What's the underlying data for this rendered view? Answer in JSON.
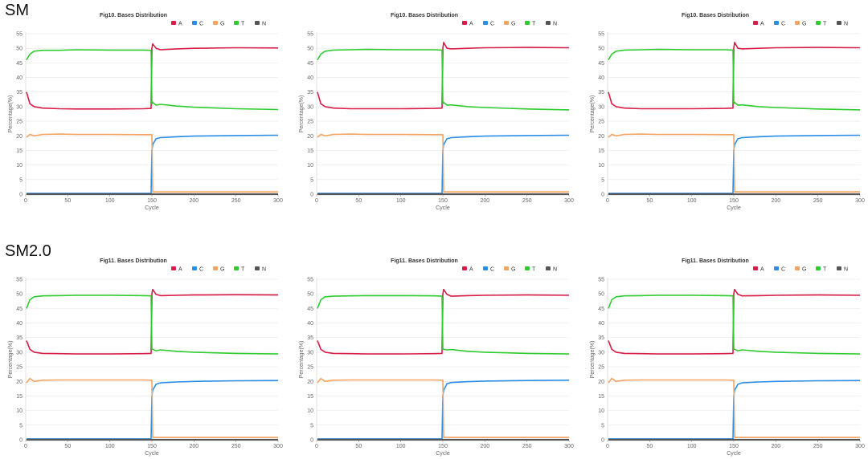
{
  "sections": [
    {
      "label": "SM"
    },
    {
      "label": "SM2.0"
    }
  ],
  "colors": {
    "A": "#d81b47",
    "C": "#2a8ee8",
    "G": "#f4a460",
    "T": "#2ecc2e",
    "N": "#555555"
  },
  "chart_data": [
    {
      "type": "line",
      "title": "Fig10. Bases Distribution",
      "xlabel": "Cycle",
      "ylabel": "Percentage(%)",
      "xlim": [
        0,
        300
      ],
      "ylim": [
        0,
        55
      ],
      "xticks": [
        0,
        50,
        100,
        150,
        200,
        250,
        300
      ],
      "yticks": [
        0,
        5,
        10,
        15,
        20,
        25,
        30,
        35,
        40,
        45,
        50,
        55
      ],
      "legend": "top-right",
      "grid": "horizontal",
      "x": [
        1,
        5,
        10,
        20,
        40,
        60,
        100,
        140,
        149,
        150,
        151,
        155,
        160,
        180,
        200,
        250,
        300
      ],
      "series": [
        {
          "name": "A",
          "values": [
            35,
            31,
            30,
            29.5,
            29.3,
            29.2,
            29.2,
            29.3,
            29.4,
            50,
            51.5,
            50,
            49.5,
            49.8,
            50,
            50.2,
            50.1
          ]
        },
        {
          "name": "C",
          "values": [
            0.3,
            0.3,
            0.3,
            0.3,
            0.3,
            0.3,
            0.3,
            0.3,
            0.3,
            15,
            17,
            19,
            19.4,
            19.7,
            19.9,
            20.1,
            20.2
          ]
        },
        {
          "name": "G",
          "values": [
            19.5,
            20.5,
            20,
            20.5,
            20.6,
            20.5,
            20.5,
            20.4,
            20.4,
            20.4,
            0.8,
            0.8,
            0.8,
            0.8,
            0.8,
            0.8,
            0.8
          ]
        },
        {
          "name": "T",
          "values": [
            46,
            48,
            49,
            49.3,
            49.3,
            49.5,
            49.4,
            49.4,
            49.3,
            31,
            31.5,
            30.5,
            30.8,
            30.2,
            29.8,
            29.3,
            29
          ]
        },
        {
          "name": "N",
          "values": [
            0,
            0,
            0,
            0,
            0,
            0,
            0,
            0,
            0,
            0,
            0,
            0,
            0,
            0,
            0,
            0,
            0
          ]
        }
      ]
    },
    {
      "type": "line",
      "title": "Fig10. Bases Distribution",
      "xlabel": "Cycle",
      "ylabel": "Percentage(%)",
      "xlim": [
        0,
        300
      ],
      "ylim": [
        0,
        55
      ],
      "xticks": [
        0,
        50,
        100,
        150,
        200,
        250,
        300
      ],
      "yticks": [
        0,
        5,
        10,
        15,
        20,
        25,
        30,
        35,
        40,
        45,
        50,
        55
      ],
      "legend": "top-right",
      "grid": "horizontal",
      "x": [
        1,
        5,
        10,
        20,
        40,
        60,
        100,
        140,
        149,
        150,
        151,
        155,
        160,
        180,
        200,
        250,
        300
      ],
      "series": [
        {
          "name": "A",
          "values": [
            35,
            31,
            30,
            29.5,
            29.3,
            29.3,
            29.3,
            29.4,
            29.5,
            50,
            52,
            50,
            49.8,
            50,
            50.2,
            50.3,
            50.2
          ]
        },
        {
          "name": "C",
          "values": [
            0.3,
            0.3,
            0.3,
            0.3,
            0.3,
            0.3,
            0.3,
            0.3,
            0.3,
            15,
            17,
            19,
            19.4,
            19.7,
            19.9,
            20.1,
            20.2
          ]
        },
        {
          "name": "G",
          "values": [
            19.5,
            20.5,
            20,
            20.5,
            20.6,
            20.5,
            20.5,
            20.4,
            20.4,
            20.4,
            0.8,
            0.8,
            0.8,
            0.8,
            0.8,
            0.8,
            0.8
          ]
        },
        {
          "name": "T",
          "values": [
            46,
            48,
            49,
            49.4,
            49.5,
            49.6,
            49.5,
            49.5,
            49.4,
            31,
            31.5,
            30.5,
            30.6,
            30,
            29.7,
            29.2,
            28.9
          ]
        },
        {
          "name": "N",
          "values": [
            0,
            0,
            0,
            0,
            0,
            0,
            0,
            0,
            0,
            0,
            0,
            0,
            0,
            0,
            0,
            0,
            0
          ]
        }
      ]
    },
    {
      "type": "line",
      "title": "Fig10. Bases Distribution",
      "xlabel": "Cycle",
      "ylabel": "Percentage(%)",
      "xlim": [
        0,
        300
      ],
      "ylim": [
        0,
        55
      ],
      "xticks": [
        0,
        50,
        100,
        150,
        200,
        250,
        300
      ],
      "yticks": [
        0,
        5,
        10,
        15,
        20,
        25,
        30,
        35,
        40,
        45,
        50,
        55
      ],
      "legend": "top-right",
      "grid": "horizontal",
      "x": [
        1,
        5,
        10,
        20,
        40,
        60,
        100,
        140,
        149,
        150,
        151,
        155,
        160,
        180,
        200,
        250,
        300
      ],
      "series": [
        {
          "name": "A",
          "values": [
            35,
            31,
            30,
            29.5,
            29.3,
            29.3,
            29.3,
            29.4,
            29.5,
            50,
            52,
            50,
            49.8,
            50,
            50.2,
            50.3,
            50.2
          ]
        },
        {
          "name": "C",
          "values": [
            0.3,
            0.3,
            0.3,
            0.3,
            0.3,
            0.3,
            0.3,
            0.3,
            0.3,
            15,
            17,
            19,
            19.4,
            19.7,
            19.9,
            20.1,
            20.2
          ]
        },
        {
          "name": "G",
          "values": [
            19.5,
            20.5,
            20,
            20.5,
            20.6,
            20.5,
            20.5,
            20.4,
            20.4,
            20.4,
            0.8,
            0.8,
            0.8,
            0.8,
            0.8,
            0.8,
            0.8
          ]
        },
        {
          "name": "T",
          "values": [
            46,
            48,
            49,
            49.4,
            49.5,
            49.6,
            49.5,
            49.5,
            49.4,
            31,
            31.5,
            30.5,
            30.6,
            30,
            29.7,
            29.2,
            28.9
          ]
        },
        {
          "name": "N",
          "values": [
            0,
            0,
            0,
            0,
            0,
            0,
            0,
            0,
            0,
            0,
            0,
            0,
            0,
            0,
            0,
            0,
            0
          ]
        }
      ]
    },
    {
      "type": "line",
      "title": "Fig11. Bases Distribution",
      "xlabel": "Cycle",
      "ylabel": "Percentage(%)",
      "xlim": [
        0,
        300
      ],
      "ylim": [
        0,
        55
      ],
      "xticks": [
        0,
        50,
        100,
        150,
        200,
        250,
        300
      ],
      "yticks": [
        0,
        5,
        10,
        15,
        20,
        25,
        30,
        35,
        40,
        45,
        50,
        55
      ],
      "legend": "top-right",
      "grid": "horizontal",
      "x": [
        1,
        5,
        10,
        20,
        40,
        60,
        100,
        140,
        149,
        150,
        151,
        155,
        160,
        180,
        200,
        250,
        300
      ],
      "series": [
        {
          "name": "A",
          "values": [
            34,
            31,
            30,
            29.6,
            29.5,
            29.4,
            29.4,
            29.5,
            29.6,
            50,
            51.5,
            49.8,
            49.4,
            49.5,
            49.6,
            49.7,
            49.6
          ]
        },
        {
          "name": "C",
          "values": [
            0.3,
            0.3,
            0.3,
            0.3,
            0.3,
            0.3,
            0.3,
            0.3,
            0.3,
            15,
            17,
            19,
            19.5,
            19.8,
            20,
            20.2,
            20.3
          ]
        },
        {
          "name": "G",
          "values": [
            19.5,
            21,
            20,
            20.4,
            20.5,
            20.5,
            20.5,
            20.5,
            20.4,
            20.4,
            0.8,
            0.8,
            0.8,
            0.8,
            0.8,
            0.8,
            0.8
          ]
        },
        {
          "name": "T",
          "values": [
            45,
            48,
            49,
            49.3,
            49.4,
            49.5,
            49.5,
            49.4,
            49.3,
            31,
            31,
            30.5,
            30.8,
            30.3,
            30,
            29.6,
            29.4
          ]
        },
        {
          "name": "N",
          "values": [
            0,
            0,
            0,
            0,
            0,
            0,
            0,
            0,
            0,
            0,
            0,
            0,
            0,
            0,
            0,
            0,
            0
          ]
        }
      ]
    },
    {
      "type": "line",
      "title": "Fig11. Bases Distribution",
      "xlabel": "Cycle",
      "ylabel": "Percentage(%)",
      "xlim": [
        0,
        300
      ],
      "ylim": [
        0,
        55
      ],
      "xticks": [
        0,
        50,
        100,
        150,
        200,
        250,
        300
      ],
      "yticks": [
        0,
        5,
        10,
        15,
        20,
        25,
        30,
        35,
        40,
        45,
        50,
        55
      ],
      "legend": "top-right",
      "grid": "horizontal",
      "x": [
        1,
        5,
        10,
        20,
        40,
        60,
        100,
        140,
        149,
        150,
        151,
        155,
        160,
        180,
        200,
        250,
        300
      ],
      "series": [
        {
          "name": "A",
          "values": [
            34,
            31,
            30,
            29.6,
            29.5,
            29.4,
            29.4,
            29.5,
            29.6,
            50,
            51.5,
            49.8,
            49.2,
            49.4,
            49.5,
            49.6,
            49.5
          ]
        },
        {
          "name": "C",
          "values": [
            0.3,
            0.3,
            0.3,
            0.3,
            0.3,
            0.3,
            0.3,
            0.3,
            0.3,
            15,
            17,
            19.2,
            19.6,
            19.9,
            20.1,
            20.3,
            20.4
          ]
        },
        {
          "name": "G",
          "values": [
            19.5,
            21,
            20,
            20.4,
            20.5,
            20.5,
            20.5,
            20.5,
            20.4,
            20.4,
            0.8,
            0.8,
            0.8,
            0.8,
            0.8,
            0.8,
            0.8
          ]
        },
        {
          "name": "T",
          "values": [
            45,
            48,
            49,
            49.2,
            49.3,
            49.4,
            49.4,
            49.3,
            49.2,
            31,
            31,
            30.8,
            30.9,
            30.3,
            30,
            29.6,
            29.4
          ]
        },
        {
          "name": "N",
          "values": [
            0,
            0,
            0,
            0,
            0,
            0,
            0,
            0,
            0,
            0,
            0,
            0,
            0,
            0,
            0,
            0,
            0
          ]
        }
      ]
    },
    {
      "type": "line",
      "title": "Fig11. Bases Distribution",
      "xlabel": "Cycle",
      "ylabel": "Percentage(%)",
      "xlim": [
        0,
        300
      ],
      "ylim": [
        0,
        55
      ],
      "xticks": [
        0,
        50,
        100,
        150,
        200,
        250,
        300
      ],
      "yticks": [
        0,
        5,
        10,
        15,
        20,
        25,
        30,
        35,
        40,
        45,
        50,
        55
      ],
      "legend": "top-right",
      "grid": "horizontal",
      "x": [
        1,
        5,
        10,
        20,
        40,
        60,
        100,
        140,
        149,
        150,
        151,
        155,
        160,
        180,
        200,
        250,
        300
      ],
      "series": [
        {
          "name": "A",
          "values": [
            34,
            31,
            30,
            29.6,
            29.5,
            29.4,
            29.4,
            29.5,
            29.6,
            50,
            51.5,
            49.8,
            49.3,
            49.4,
            49.5,
            49.6,
            49.5
          ]
        },
        {
          "name": "C",
          "values": [
            0.3,
            0.3,
            0.3,
            0.3,
            0.3,
            0.3,
            0.3,
            0.3,
            0.3,
            15,
            17,
            19,
            19.5,
            19.8,
            20,
            20.2,
            20.3
          ]
        },
        {
          "name": "G",
          "values": [
            19.5,
            21,
            20,
            20.4,
            20.5,
            20.5,
            20.5,
            20.5,
            20.4,
            20.4,
            0.8,
            0.8,
            0.8,
            0.8,
            0.8,
            0.8,
            0.8
          ]
        },
        {
          "name": "T",
          "values": [
            45,
            48,
            49,
            49.3,
            49.4,
            49.5,
            49.5,
            49.4,
            49.3,
            31,
            31,
            30.5,
            30.8,
            30.3,
            30,
            29.6,
            29.4
          ]
        },
        {
          "name": "N",
          "values": [
            0,
            0,
            0,
            0,
            0,
            0,
            0,
            0,
            0,
            0,
            0,
            0,
            0,
            0,
            0,
            0,
            0
          ]
        }
      ]
    }
  ]
}
